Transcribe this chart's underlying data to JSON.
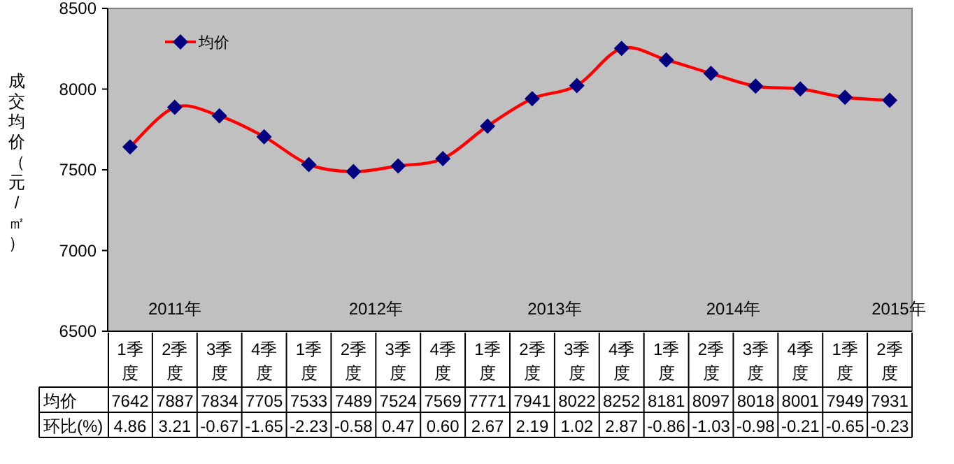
{
  "chart_data": {
    "type": "line",
    "ylabel": "成交均价（元/㎡）",
    "categories": [
      "1季度",
      "2季度",
      "3季度",
      "4季度",
      "1季度",
      "2季度",
      "3季度",
      "4季度",
      "1季度",
      "2季度",
      "3季度",
      "4季度",
      "1季度",
      "2季度",
      "3季度",
      "4季度",
      "1季度",
      "2季度"
    ],
    "series": [
      {
        "name": "均价",
        "color": "#ff0000",
        "values": [
          7642,
          7887,
          7834,
          7705,
          7533,
          7489,
          7524,
          7569,
          7771,
          7941,
          8022,
          8252,
          8181,
          8097,
          8018,
          8001,
          7949,
          7931
        ]
      }
    ],
    "ylim": [
      6500,
      8500
    ],
    "yticks": [
      6500,
      7000,
      7500,
      8000,
      8500
    ],
    "marker": "diamond",
    "line_style": "solid",
    "legend": "top left",
    "grid": false,
    "data_labels": true,
    "annotations": [
      "2011年",
      "2012年",
      "2013年",
      "2014年",
      "2015年",
      "环比(%)",
      "4.86",
      "3.21",
      "-0.67",
      "-1.65",
      "-2.23",
      "-0.58",
      "0.47",
      "0.60",
      "2.67",
      "2.19",
      "1.02",
      "2.87",
      "-0.86",
      "-1.03",
      "-0.98",
      "-0.21",
      "-0.65",
      "-0.23"
    ]
  }
}
